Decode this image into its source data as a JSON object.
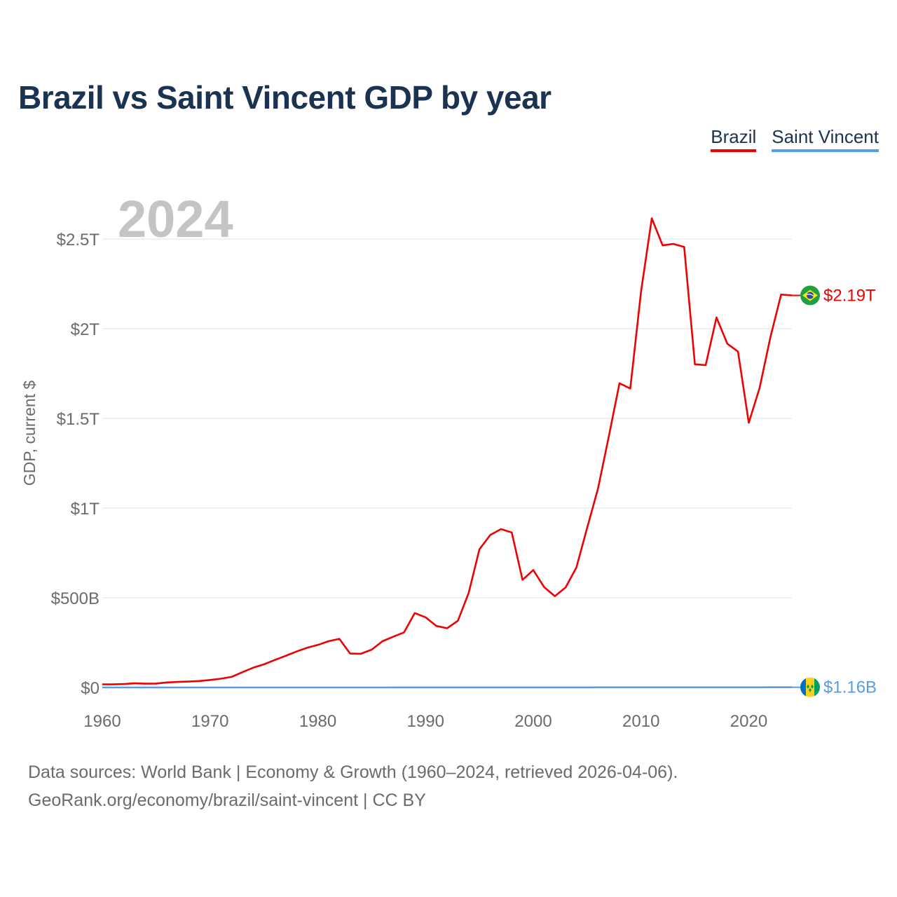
{
  "title": "Brazil vs Saint Vincent GDP by year",
  "legend": {
    "brazil": "Brazil",
    "saint_vincent": "Saint Vincent"
  },
  "year_watermark": "2024",
  "footer": {
    "line1": "Data sources: World Bank | Economy & Growth (1960–2024, retrieved 2026-04-06).",
    "line2": "GeoRank.org/economy/brazil/saint-vincent | CC BY"
  },
  "colors": {
    "brazil": "#f00000",
    "saint_vincent": "#559ee4",
    "title": "#1b3251"
  },
  "chart_data": {
    "type": "line",
    "title": "Brazil vs Saint Vincent GDP by year",
    "xlabel": "",
    "ylabel": "GDP, current $",
    "xlim": [
      1960,
      2024
    ],
    "ylim": [
      0,
      2.7
    ],
    "y_unit": "trillions USD",
    "x_ticks": [
      1960,
      1970,
      1980,
      1990,
      2000,
      2010,
      2020
    ],
    "x_tick_labels": [
      "1960",
      "1970",
      "1980",
      "1990",
      "2000",
      "2010",
      "2020"
    ],
    "y_ticks": [
      0,
      0.5,
      1,
      1.5,
      2,
      2.5
    ],
    "y_tick_labels": [
      "$0",
      "$500B",
      "$1T",
      "$1.5T",
      "$2T",
      "$2.5T"
    ],
    "grid": true,
    "legend_position": "top-right",
    "x": [
      1960,
      1961,
      1962,
      1963,
      1964,
      1965,
      1966,
      1967,
      1968,
      1969,
      1970,
      1971,
      1972,
      1973,
      1974,
      1975,
      1976,
      1977,
      1978,
      1979,
      1980,
      1981,
      1982,
      1983,
      1984,
      1985,
      1986,
      1987,
      1988,
      1989,
      1990,
      1991,
      1992,
      1993,
      1994,
      1995,
      1996,
      1997,
      1998,
      1999,
      2000,
      2001,
      2002,
      2003,
      2004,
      2005,
      2006,
      2007,
      2008,
      2009,
      2010,
      2011,
      2012,
      2013,
      2014,
      2015,
      2016,
      2017,
      2018,
      2019,
      2020,
      2021,
      2022,
      2023,
      2024
    ],
    "series": [
      {
        "name": "Brazil",
        "end_label": "$2.19T",
        "values": [
          0.017,
          0.017,
          0.019,
          0.023,
          0.021,
          0.022,
          0.028,
          0.031,
          0.033,
          0.036,
          0.042,
          0.049,
          0.059,
          0.085,
          0.11,
          0.129,
          0.153,
          0.176,
          0.2,
          0.221,
          0.237,
          0.258,
          0.271,
          0.189,
          0.188,
          0.211,
          0.258,
          0.283,
          0.307,
          0.415,
          0.391,
          0.343,
          0.33,
          0.372,
          0.527,
          0.77,
          0.85,
          0.883,
          0.864,
          0.6,
          0.655,
          0.56,
          0.509,
          0.558,
          0.669,
          0.891,
          1.108,
          1.397,
          1.696,
          1.667,
          2.209,
          2.616,
          2.465,
          2.473,
          2.456,
          1.802,
          1.797,
          2.063,
          1.917,
          1.873,
          1.476,
          1.67,
          1.952,
          2.191,
          2.186
        ]
      },
      {
        "name": "Saint Vincent",
        "end_label": "$1.16B",
        "values": [
          0.0,
          0.0,
          0.0,
          0.0,
          0.0,
          0.0,
          0.0,
          0.0,
          0.0,
          0.0,
          0.0,
          0.0,
          0.0,
          0.0,
          0.0,
          0.0,
          0.0,
          0.0,
          0.0,
          0.0001,
          0.0001,
          0.0001,
          0.0001,
          0.0001,
          0.0001,
          0.0001,
          0.0001,
          0.0002,
          0.0002,
          0.0002,
          0.0002,
          0.0002,
          0.0002,
          0.0003,
          0.0003,
          0.0003,
          0.0003,
          0.0003,
          0.0003,
          0.0004,
          0.0004,
          0.0004,
          0.0004,
          0.0004,
          0.0005,
          0.0005,
          0.0006,
          0.0006,
          0.0007,
          0.0007,
          0.0007,
          0.0007,
          0.0007,
          0.0007,
          0.0007,
          0.0008,
          0.0008,
          0.0008,
          0.0008,
          0.0009,
          0.0009,
          0.0009,
          0.001,
          0.0011,
          0.00116
        ]
      }
    ]
  }
}
